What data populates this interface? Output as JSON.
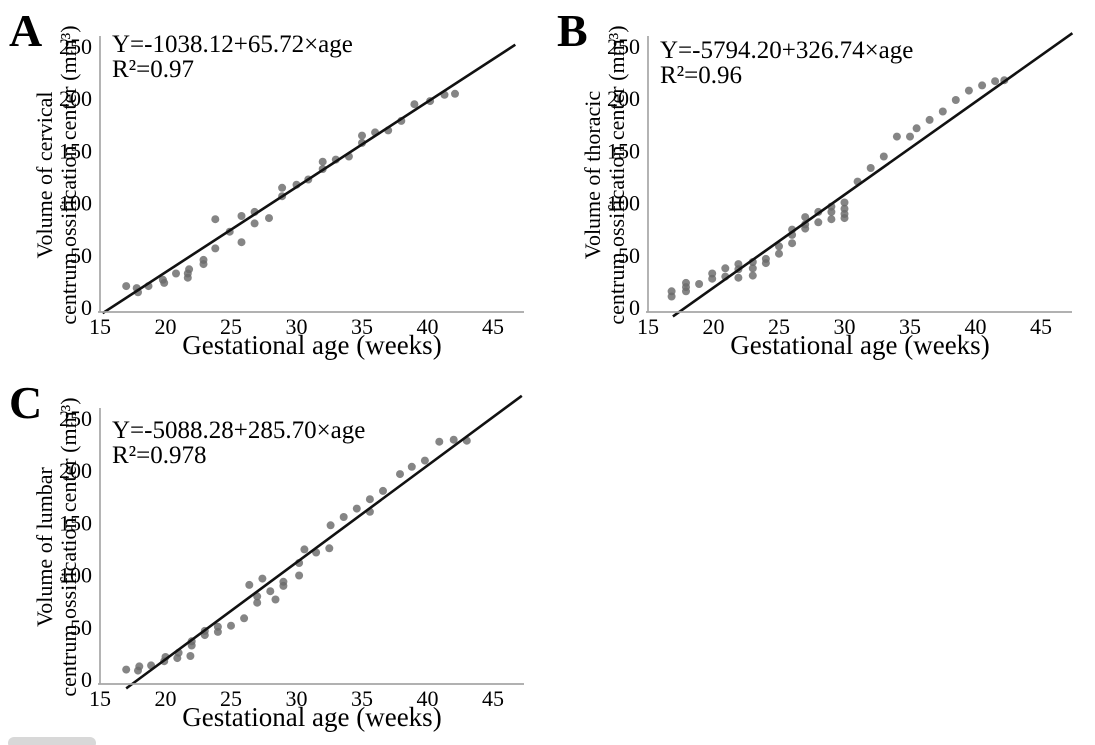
{
  "colors": {
    "point": "#6a6a6a",
    "trend_line": "#111111",
    "axis": "#a6a6a6",
    "text": "#000000",
    "background": "#ffffff"
  },
  "chart_data": [
    {
      "type": "scatter",
      "panel_label": "A",
      "equation": "Y=-1038.12+65.72×age",
      "r_squared": "R²=0.97",
      "ylabel_line1": "Volume of cervical",
      "ylabel_line2": "centrum ossification center (mm³)",
      "xlabel": "Gestational age (weeks)",
      "xlim": [
        15,
        47
      ],
      "ylim": [
        0,
        260
      ],
      "xticks": [
        15,
        20,
        25,
        30,
        35,
        40,
        45
      ],
      "yticks": [
        0,
        50,
        100,
        150,
        200,
        250
      ],
      "grid": false,
      "points": [
        [
          17,
          21
        ],
        [
          17.8,
          19
        ],
        [
          17.9,
          15
        ],
        [
          18.7,
          21
        ],
        [
          19.8,
          27
        ],
        [
          19.9,
          24
        ],
        [
          20.8,
          33
        ],
        [
          21.7,
          29
        ],
        [
          21.7,
          33
        ],
        [
          21.8,
          37
        ],
        [
          22.9,
          42
        ],
        [
          22.9,
          46
        ],
        [
          23.8,
          57
        ],
        [
          23.8,
          85
        ],
        [
          24.9,
          73
        ],
        [
          25.8,
          63
        ],
        [
          25.8,
          88
        ],
        [
          26.8,
          81
        ],
        [
          26.8,
          92
        ],
        [
          27.9,
          86
        ],
        [
          28.9,
          107
        ],
        [
          28.9,
          115
        ],
        [
          30,
          118
        ],
        [
          30.9,
          123
        ],
        [
          32,
          133
        ],
        [
          32,
          140
        ],
        [
          33,
          142
        ],
        [
          34,
          145
        ],
        [
          35,
          158
        ],
        [
          35,
          165
        ],
        [
          36,
          168
        ],
        [
          37,
          170
        ],
        [
          38,
          179
        ],
        [
          39,
          195
        ],
        [
          40.2,
          198
        ],
        [
          41.3,
          204
        ],
        [
          42.1,
          205
        ]
      ],
      "trendline": {
        "x1": 15.2,
        "y1": -5,
        "x2": 46.7,
        "y2": 252
      }
    },
    {
      "type": "scatter",
      "panel_label": "B",
      "equation": "Y=-5794.20+326.74×age",
      "r_squared": "R²=0.96",
      "ylabel_line1": "Volume of thoracic",
      "ylabel_line2": "centrum ossification center (mm³)",
      "xlabel": "Gestational age (weeks)",
      "xlim": [
        15,
        47
      ],
      "ylim": [
        0,
        260
      ],
      "xticks": [
        15,
        20,
        25,
        30,
        35,
        40,
        45
      ],
      "yticks": [
        0,
        50,
        100,
        150,
        200,
        250
      ],
      "grid": false,
      "points": [
        [
          16.8,
          11
        ],
        [
          16.8,
          16
        ],
        [
          17.9,
          16
        ],
        [
          17.9,
          20
        ],
        [
          17.9,
          24
        ],
        [
          18.9,
          23
        ],
        [
          19.9,
          28
        ],
        [
          19.9,
          33
        ],
        [
          20.9,
          30
        ],
        [
          20.9,
          38
        ],
        [
          21.9,
          29
        ],
        [
          21.9,
          37
        ],
        [
          21.9,
          42
        ],
        [
          23,
          31
        ],
        [
          23,
          38
        ],
        [
          23,
          44
        ],
        [
          24,
          43
        ],
        [
          24,
          47
        ],
        [
          25,
          52
        ],
        [
          25,
          59
        ],
        [
          26,
          62
        ],
        [
          26,
          70
        ],
        [
          26,
          75
        ],
        [
          27,
          76
        ],
        [
          27,
          80
        ],
        [
          27,
          87
        ],
        [
          28,
          82
        ],
        [
          28,
          92
        ],
        [
          29,
          85
        ],
        [
          29,
          92
        ],
        [
          29,
          97
        ],
        [
          30,
          86
        ],
        [
          30,
          90
        ],
        [
          30,
          95
        ],
        [
          30,
          101
        ],
        [
          31,
          121
        ],
        [
          32,
          134
        ],
        [
          33,
          145
        ],
        [
          34,
          164
        ],
        [
          35,
          164
        ],
        [
          35.5,
          172
        ],
        [
          36.5,
          180
        ],
        [
          37.5,
          188
        ],
        [
          38.5,
          199
        ],
        [
          39.5,
          208
        ],
        [
          40.5,
          213
        ],
        [
          41.5,
          217
        ],
        [
          42.2,
          218
        ]
      ],
      "trendline": {
        "x1": 16.9,
        "y1": -8,
        "x2": 47.4,
        "y2": 263
      }
    },
    {
      "type": "scatter",
      "panel_label": "C",
      "equation": "Y=-5088.28+285.70×age",
      "r_squared": "R²=0.978",
      "ylabel_line1": "Volume of lumbar",
      "ylabel_line2": "centrum ossification center (mm³)",
      "xlabel": "Gestational age (weeks)",
      "xlim": [
        15,
        47
      ],
      "ylim": [
        0,
        260
      ],
      "xticks": [
        15,
        20,
        25,
        30,
        35,
        40,
        45
      ],
      "yticks": [
        0,
        50,
        100,
        150,
        200,
        250
      ],
      "grid": false,
      "points": [
        [
          17,
          10
        ],
        [
          17.9,
          9
        ],
        [
          18,
          13
        ],
        [
          18.9,
          14
        ],
        [
          19.9,
          18
        ],
        [
          20,
          22
        ],
        [
          20.9,
          21
        ],
        [
          21,
          26
        ],
        [
          21.9,
          23
        ],
        [
          22,
          33
        ],
        [
          22,
          37
        ],
        [
          23,
          43
        ],
        [
          23,
          47
        ],
        [
          24,
          46
        ],
        [
          24,
          51
        ],
        [
          25,
          52
        ],
        [
          26,
          59
        ],
        [
          26.4,
          91
        ],
        [
          27,
          74
        ],
        [
          27,
          80
        ],
        [
          27.4,
          97
        ],
        [
          28,
          85
        ],
        [
          28.4,
          77
        ],
        [
          29,
          90
        ],
        [
          29,
          94
        ],
        [
          30.2,
          100
        ],
        [
          30.2,
          112
        ],
        [
          30.6,
          125
        ],
        [
          31.5,
          122
        ],
        [
          32.5,
          126
        ],
        [
          32.6,
          148
        ],
        [
          33.6,
          156
        ],
        [
          34.6,
          164
        ],
        [
          35.6,
          161
        ],
        [
          35.6,
          173
        ],
        [
          36.6,
          181
        ],
        [
          37.9,
          197
        ],
        [
          38.8,
          204
        ],
        [
          39.8,
          210
        ],
        [
          40.9,
          228
        ],
        [
          42,
          230
        ],
        [
          43,
          229
        ]
      ],
      "trendline": {
        "x1": 17.0,
        "y1": -8,
        "x2": 47.2,
        "y2": 272
      }
    }
  ]
}
